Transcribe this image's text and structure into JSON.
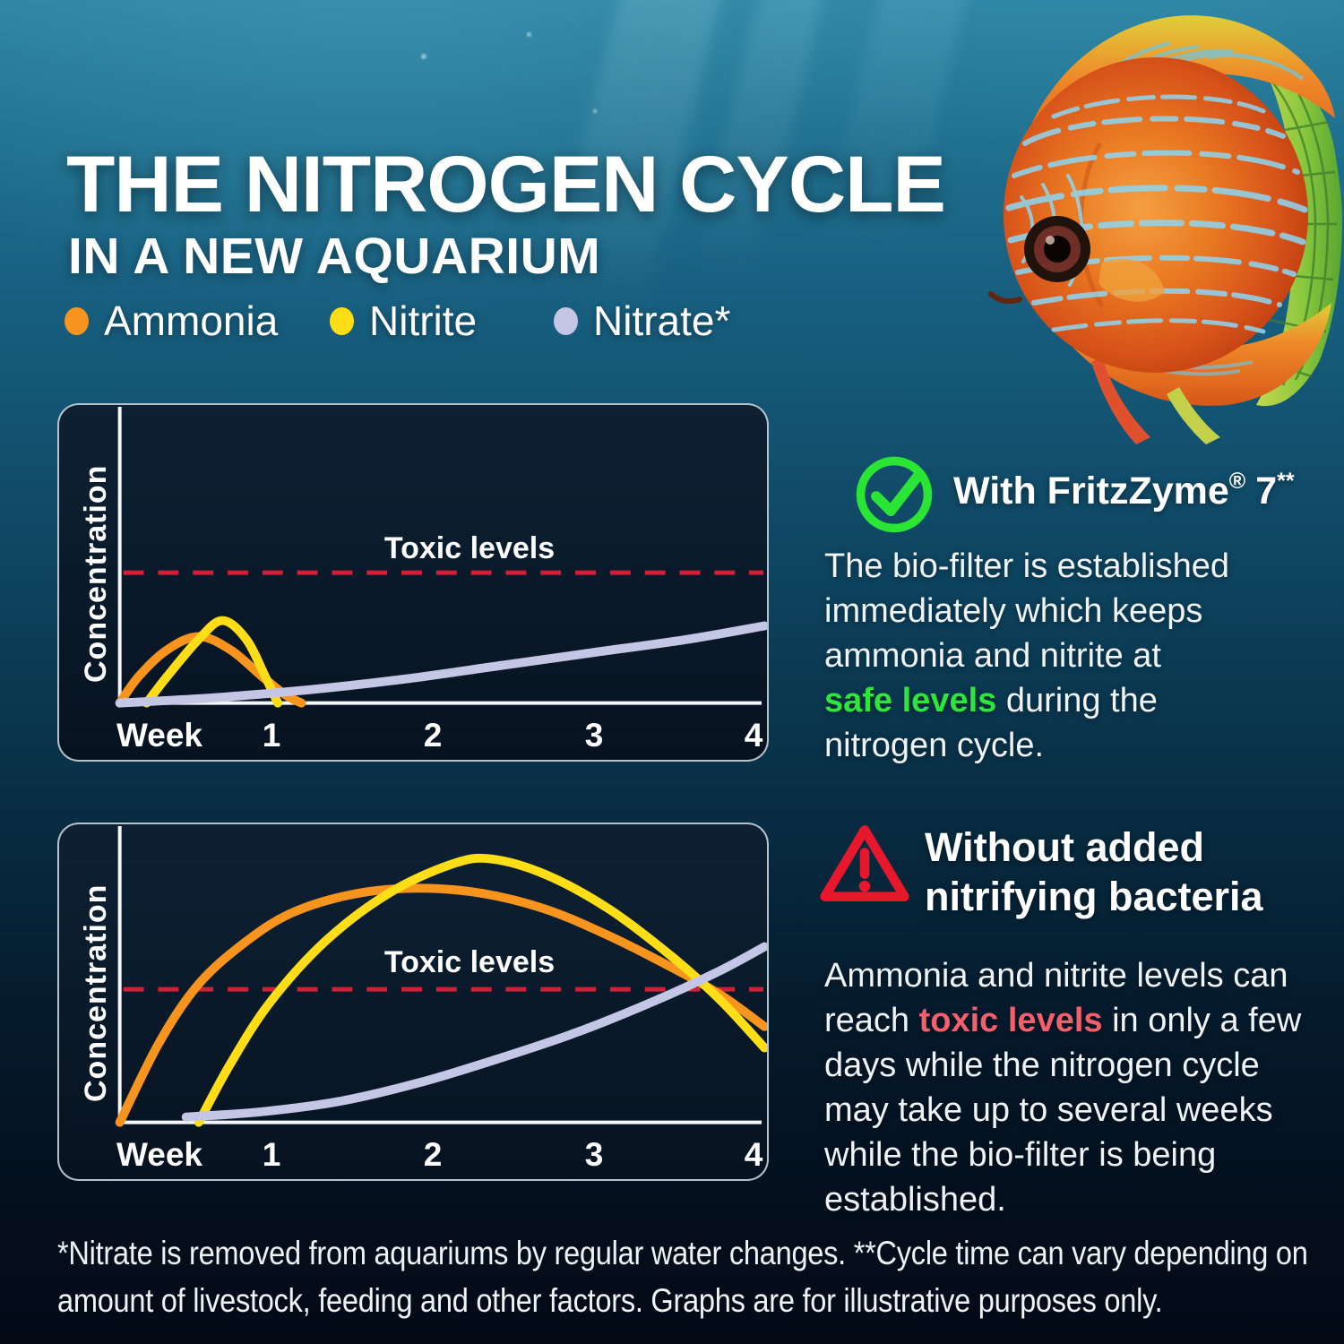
{
  "page": {
    "title": "THE NITROGEN CYCLE",
    "subtitle": "IN A NEW AQUARIUM",
    "footer_line1": "*Nitrate is removed from aquariums by regular water changes. **Cycle time can vary depending on",
    "footer_line2": "amount of livestock, feeding and other factors. Graphs are for illustrative purposes only."
  },
  "legend": {
    "items": [
      {
        "label": "Ammonia",
        "color": "#f7941e"
      },
      {
        "label": "Nitrite",
        "color": "#ffdd17"
      },
      {
        "label": "Nitrate*",
        "color": "#c3c6e4"
      }
    ]
  },
  "right": {
    "with": {
      "icon": "check-circle-icon",
      "icon_color": "#2be535",
      "heading": {
        "main": "With FritzZyme",
        "reg": "®",
        "num": "7",
        "stars": "**"
      },
      "lines": [
        {
          "pre": "The bio-filter is established"
        },
        {
          "pre": "immediately which keeps"
        },
        {
          "pre": "ammonia and nitrite at"
        },
        {
          "hl": "safe levels",
          "post": " during the"
        },
        {
          "pre": "nitrogen cycle."
        }
      ],
      "highlight_color": "#2ee63b"
    },
    "without": {
      "icon": "warning-triangle-icon",
      "icon_color": "#e8182c",
      "heading_line1": "Without added",
      "heading_line2": "nitrifying bacteria",
      "lines": [
        {
          "pre": "Ammonia and nitrite levels can"
        },
        {
          "pre": "reach ",
          "hl": "toxic levels",
          "post": " in only a few"
        },
        {
          "pre": "days while the nitrogen cycle"
        },
        {
          "pre": "may take up to several weeks"
        },
        {
          "pre": "while the bio-filter is being"
        },
        {
          "pre": "established."
        }
      ],
      "highlight_color": "#f2606d"
    }
  },
  "chart_data": {
    "type": "line",
    "x_ticks": [
      "Week",
      "1",
      "2",
      "3",
      "4"
    ],
    "x_range_weeks": [
      0,
      4
    ],
    "y_range": [
      0,
      100
    ],
    "ylabel": "Concentration",
    "toxic_label": "Toxic levels",
    "toxic_line_color": "#cf2038",
    "grid": false,
    "charts": [
      {
        "name": "with-fritzzyme-7",
        "toxic_level": 49,
        "series": [
          {
            "name": "Ammonia",
            "color": "#f7941e",
            "points": [
              [
                0,
                0
              ],
              [
                0.12,
                10
              ],
              [
                0.3,
                20
              ],
              [
                0.5,
                25
              ],
              [
                0.7,
                20
              ],
              [
                0.9,
                10
              ],
              [
                1.05,
                3
              ],
              [
                1.15,
                0
              ]
            ]
          },
          {
            "name": "Nitrite",
            "color": "#ffdd17",
            "points": [
              [
                0.17,
                0
              ],
              [
                0.3,
                10
              ],
              [
                0.5,
                24
              ],
              [
                0.65,
                31
              ],
              [
                0.8,
                24
              ],
              [
                0.92,
                10
              ],
              [
                1.0,
                0
              ]
            ]
          },
          {
            "name": "Nitrate",
            "color": "#c3c6e4",
            "points": [
              [
                0,
                0
              ],
              [
                0.6,
                2
              ],
              [
                1.2,
                5
              ],
              [
                1.8,
                9
              ],
              [
                2.4,
                14
              ],
              [
                3.0,
                19
              ],
              [
                3.6,
                24
              ],
              [
                4.08,
                29
              ]
            ]
          }
        ]
      },
      {
        "name": "without-added-nitrifying-bacteria",
        "toxic_level": 50,
        "series": [
          {
            "name": "Ammonia",
            "color": "#f7941e",
            "points": [
              [
                0,
                0
              ],
              [
                0.25,
                30
              ],
              [
                0.5,
                52
              ],
              [
                0.8,
                68
              ],
              [
                1.1,
                79
              ],
              [
                1.5,
                86
              ],
              [
                1.9,
                88
              ],
              [
                2.3,
                86
              ],
              [
                2.7,
                80
              ],
              [
                3.1,
                70
              ],
              [
                3.5,
                58
              ],
              [
                3.8,
                48
              ],
              [
                4.08,
                36
              ]
            ]
          },
          {
            "name": "Nitrite",
            "color": "#ffdd17",
            "points": [
              [
                0.5,
                0
              ],
              [
                0.7,
                22
              ],
              [
                0.95,
                45
              ],
              [
                1.3,
                68
              ],
              [
                1.7,
                86
              ],
              [
                2.1,
                97
              ],
              [
                2.35,
                99
              ],
              [
                2.7,
                93
              ],
              [
                3.1,
                80
              ],
              [
                3.5,
                62
              ],
              [
                3.8,
                46
              ],
              [
                4.08,
                28
              ]
            ]
          },
          {
            "name": "Nitrate",
            "color": "#c3c6e4",
            "points": [
              [
                0.42,
                2
              ],
              [
                0.9,
                4
              ],
              [
                1.4,
                8
              ],
              [
                1.9,
                15
              ],
              [
                2.4,
                24
              ],
              [
                2.9,
                34
              ],
              [
                3.4,
                46
              ],
              [
                3.8,
                57
              ],
              [
                4.08,
                66
              ]
            ]
          }
        ]
      }
    ]
  }
}
